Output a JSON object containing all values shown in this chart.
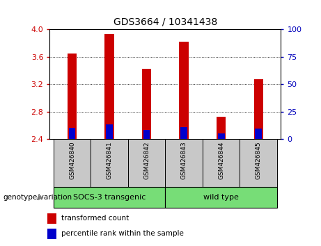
{
  "title": "GDS3664 / 10341438",
  "samples": [
    "GSM426840",
    "GSM426841",
    "GSM426842",
    "GSM426843",
    "GSM426844",
    "GSM426845"
  ],
  "red_tops": [
    3.65,
    3.93,
    3.43,
    3.82,
    2.73,
    3.27
  ],
  "blue_tops": [
    2.56,
    2.615,
    2.535,
    2.575,
    2.485,
    2.555
  ],
  "base": 2.4,
  "ylim_left": [
    2.4,
    4.0
  ],
  "yticks_left": [
    2.4,
    2.8,
    3.2,
    3.6,
    4.0
  ],
  "ylim_right": [
    0,
    100
  ],
  "yticks_right": [
    0,
    25,
    50,
    75,
    100
  ],
  "red_color": "#CC0000",
  "blue_color": "#0000CC",
  "bar_width": 0.25,
  "blue_bar_width": 0.18,
  "grid_lines": [
    2.8,
    3.2,
    3.6
  ],
  "group1_label": "SOCS-3 transgenic",
  "group2_label": "wild type",
  "group_color": "#77DD77",
  "sample_bg_color": "#C8C8C8",
  "legend1": "transformed count",
  "legend2": "percentile rank within the sample",
  "group_row_label": "genotype/variation",
  "left_tick_color": "#CC0000",
  "right_tick_color": "#0000BB"
}
